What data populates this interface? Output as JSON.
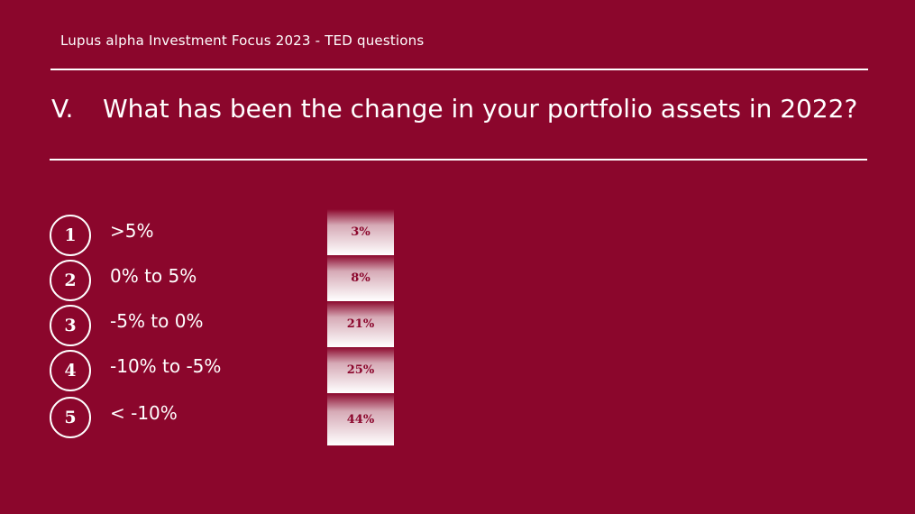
{
  "header": {
    "title": "Lupus alpha Investment Focus 2023 - TED questions"
  },
  "question": {
    "number": "V.",
    "text": "What has been the change in your portfolio assets in 2022?"
  },
  "chart_data": {
    "type": "bar",
    "orientation": "horizontal-rows",
    "categories": [
      ">5%",
      "0% to 5%",
      "-5% to 0%",
      "-10% to -5%",
      "< -10%"
    ],
    "numbers": [
      "1",
      "2",
      "3",
      "4",
      "5"
    ],
    "values": [
      3,
      8,
      21,
      25,
      44
    ],
    "data_labels": [
      "3%",
      "8%",
      "21%",
      "25%",
      "44%"
    ],
    "colors": {
      "background": "#8b062c",
      "bar_top": "#8b062c",
      "bar_bottom": "#ffffff",
      "label": "#8b062c"
    }
  }
}
